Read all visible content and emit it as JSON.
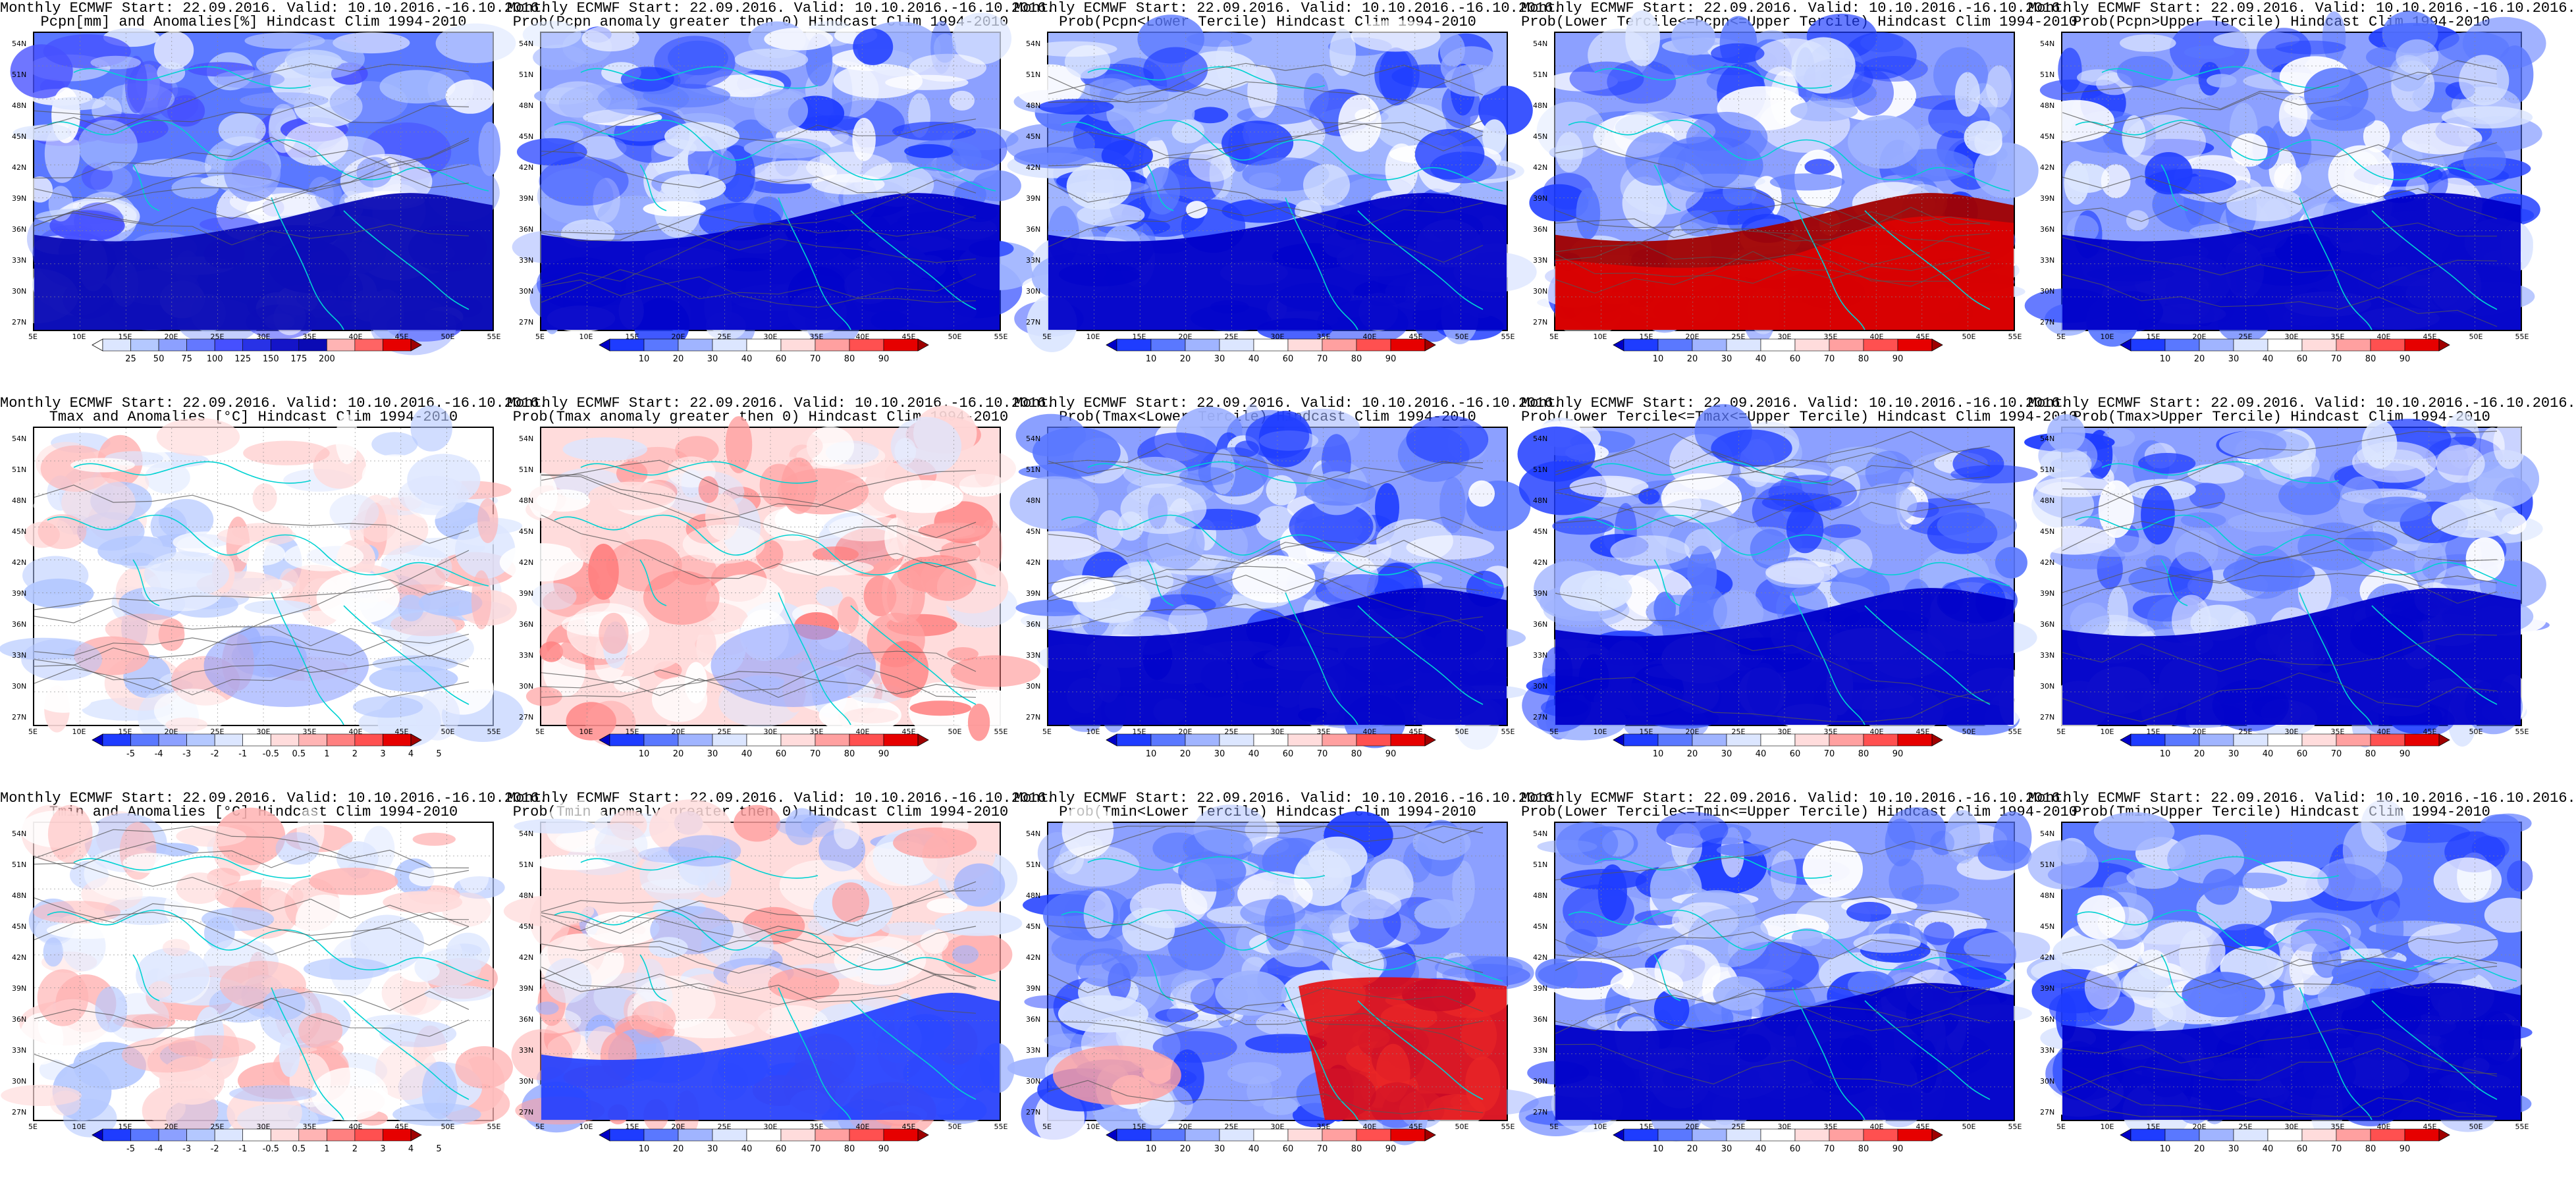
{
  "figure": {
    "rows": [
      {
        "variable": "pcpn",
        "panels": [
          {
            "line1": "Monthly ECMWF Start: 22.09.2016. Valid: 10.10.2016.-16.10.2016.",
            "line2": "Pcpn[mm] and Anomalies[%] Hindcast Clim 1994-2010",
            "style": "anom-pcpn",
            "bar": "pcpn-anom"
          },
          {
            "line1": "Monthly ECMWF Start: 22.09.2016. Valid: 10.10.2016.-16.10.2016.",
            "line2": "Prob(Pcpn anomaly greater then 0) Hindcast Clim 1994-2010",
            "style": "prob-blue",
            "bar": "prob"
          },
          {
            "line1": "Monthly ECMWF Start: 22.09.2016. Valid: 10.10.2016.-16.10.2016.",
            "line2": "Prob(Pcpn<Lower Tercile) Hindcast Clim 1994-2010",
            "style": "prob-lower-pcpn",
            "bar": "prob"
          },
          {
            "line1": "Monthly ECMWF Start: 22.09.2016. Valid: 10.10.2016.-16.10.2016.",
            "line2": "Prob(Lower Tercile<=Pcpn<=Upper Tercile) Hindcast Clim 1994-2010",
            "style": "prob-mid-pcpn",
            "bar": "prob"
          },
          {
            "line1": "Monthly ECMWF Start: 22.09.2016. Valid: 10.10.2016.-16.10.2016.",
            "line2": "Prob(Pcpn>Upper Tercile) Hindcast Clim 1994-2010",
            "style": "prob-blue",
            "bar": "prob"
          }
        ]
      },
      {
        "variable": "tmax",
        "panels": [
          {
            "line1": "Monthly ECMWF Start: 22.09.2016. Valid: 10.10.2016.-16.10.2016.",
            "line2": "Tmax and Anomalies [°C] Hindcast Clim 1994-2010",
            "style": "anom-temp",
            "bar": "temp-anom"
          },
          {
            "line1": "Monthly ECMWF Start: 22.09.2016. Valid: 10.10.2016.-16.10.2016.",
            "line2": "Prob(Tmax anomaly greater then 0) Hindcast Clim 1994-2010",
            "style": "prob-warm",
            "bar": "prob"
          },
          {
            "line1": "Monthly ECMWF Start: 22.09.2016. Valid: 10.10.2016.-16.10.2016.",
            "line2": "Prob(Tmax<Lower Tercile) Hindcast Clim 1994-2010",
            "style": "prob-blue",
            "bar": "prob"
          },
          {
            "line1": "Monthly ECMWF Start: 22.09.2016. Valid: 10.10.2016.-16.10.2016.",
            "line2": "Prob(Lower Tercile<=Tmax<=Upper Tercile) Hindcast Clim 1994-2010",
            "style": "prob-blue",
            "bar": "prob"
          },
          {
            "line1": "Monthly ECMWF Start: 22.09.2016. Valid: 10.10.2016.-16.10.2016.",
            "line2": "Prob(Tmax>Upper Tercile) Hindcast Clim 1994-2010",
            "style": "prob-blue",
            "bar": "prob"
          }
        ]
      },
      {
        "variable": "tmin",
        "panels": [
          {
            "line1": "Monthly ECMWF Start: 22.09.2016. Valid: 10.10.2016.-16.10.2016.",
            "line2": "Tmin and Anomalies [°C] Hindcast Clim 1994-2010",
            "style": "anom-tmin",
            "bar": "temp-anom"
          },
          {
            "line1": "Monthly ECMWF Start: 22.09.2016. Valid: 10.10.2016.-16.10.2016.",
            "line2": "Prob(Tmin anomaly greater then 0) Hindcast Clim 1994-2010",
            "style": "prob-warm-south-blue",
            "bar": "prob"
          },
          {
            "line1": "Monthly ECMWF Start: 22.09.2016. Valid: 10.10.2016.-16.10.2016.",
            "line2": "Prob(Tmin<Lower Tercile) Hindcast Clim 1994-2010",
            "style": "prob-lower-tmin",
            "bar": "prob"
          },
          {
            "line1": "Monthly ECMWF Start: 22.09.2016. Valid: 10.10.2016.-16.10.2016.",
            "line2": "Prob(Lower Tercile<=Tmin<=Upper Tercile) Hindcast Clim 1994-2010",
            "style": "prob-blue",
            "bar": "prob"
          },
          {
            "line1": "Monthly ECMWF Start: 22.09.2016. Valid: 10.10.2016.-16.10.2016.",
            "line2": "Prob(Tmin>Upper Tercile) Hindcast Clim 1994-2010",
            "style": "prob-blue-dark",
            "bar": "prob"
          }
        ]
      }
    ]
  },
  "axes": {
    "lat_labels": [
      "54N",
      "51N",
      "48N",
      "45N",
      "42N",
      "39N",
      "36N",
      "33N",
      "30N",
      "27N"
    ],
    "lon_labels": [
      "5E",
      "10E",
      "15E",
      "20E",
      "25E",
      "30E",
      "35E",
      "40E",
      "45E",
      "50E",
      "55E"
    ]
  },
  "colorbars": {
    "prob": {
      "ticks": [
        "10",
        "20",
        "30",
        "40",
        "60",
        "70",
        "80",
        "90"
      ],
      "colors": [
        "#0000c8",
        "#1e3cff",
        "#5a78ff",
        "#a0b4ff",
        "#dce6ff",
        "#ffffff",
        "#ffdcdc",
        "#ffa0a0",
        "#ff5050",
        "#e60000",
        "#a00000"
      ]
    },
    "pcpn-anom": {
      "ticks": [
        "25",
        "50",
        "75",
        "100",
        "125",
        "150",
        "175",
        "200"
      ],
      "colors": [
        "#ffffff",
        "#dce6ff",
        "#b4c8ff",
        "#8ca0ff",
        "#6478ff",
        "#4650ff",
        "#2832e6",
        "#1414c8",
        "#0a0ab4",
        "#ffb4b4",
        "#ff6464",
        "#e60000",
        "#a00000"
      ]
    },
    "temp-anom": {
      "ticks": [
        "-5",
        "-4",
        "-3",
        "-2",
        "-1",
        "-0.5",
        "0.5",
        "1",
        "2",
        "3",
        "4",
        "5"
      ],
      "colors": [
        "#0000c8",
        "#1e3cff",
        "#5a78ff",
        "#8ca0ff",
        "#b4c8ff",
        "#dce6ff",
        "#ffffff",
        "#ffdcdc",
        "#ffb4b4",
        "#ff8080",
        "#ff5050",
        "#e60000",
        "#a00000"
      ]
    }
  },
  "palette": {
    "coast": "#00d2d2",
    "contour": "#555555",
    "frame": "#000000"
  }
}
